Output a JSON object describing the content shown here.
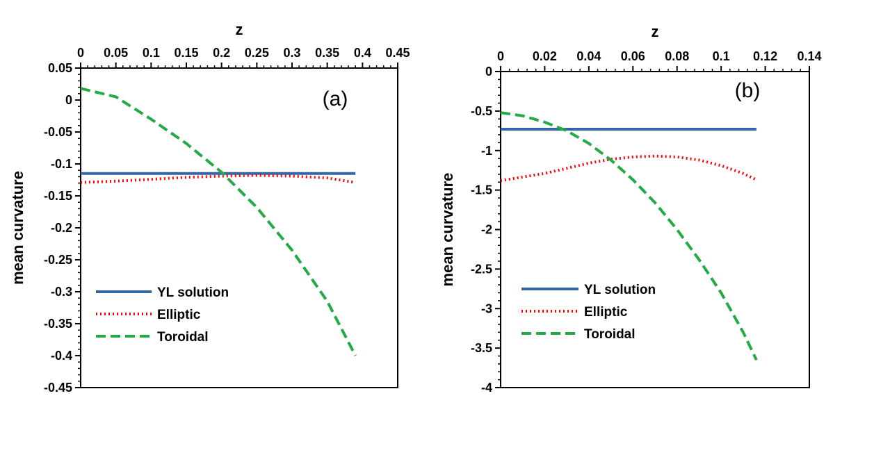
{
  "chart_data": [
    {
      "type": "line",
      "panel_label": "(a)",
      "xlabel": "z",
      "ylabel": "mean curvature",
      "xlim": [
        0,
        0.45
      ],
      "ylim": [
        -0.45,
        0.05
      ],
      "x_ticks": [
        "0",
        "0.05",
        "0.1",
        "0.15",
        "0.2",
        "0.25",
        "0.3",
        "0.35",
        "0.4",
        "0.45"
      ],
      "y_ticks": [
        "0.05",
        "0",
        "-0.05",
        "-0.1",
        "-0.15",
        "-0.2",
        "-0.25",
        "-0.3",
        "-0.35",
        "-0.4",
        "-0.45"
      ],
      "x_axis_position": "top",
      "grid": false,
      "legend_position": "bottom-left",
      "series": [
        {
          "name": "YL solution",
          "color": "#3466a5",
          "dash": "solid",
          "x": [
            0,
            0.1,
            0.2,
            0.3,
            0.39
          ],
          "y": [
            -0.115,
            -0.115,
            -0.115,
            -0.115,
            -0.115
          ]
        },
        {
          "name": "Elliptic",
          "color": "#ff0000",
          "dash": "dotted",
          "x": [
            0,
            0.05,
            0.1,
            0.15,
            0.2,
            0.25,
            0.3,
            0.35,
            0.39
          ],
          "y": [
            -0.129,
            -0.127,
            -0.124,
            -0.121,
            -0.119,
            -0.118,
            -0.119,
            -0.122,
            -0.129
          ]
        },
        {
          "name": "Toroidal",
          "color": "#22aa44",
          "dash": "dashed",
          "x": [
            0,
            0.05,
            0.1,
            0.15,
            0.2,
            0.25,
            0.3,
            0.35,
            0.39
          ],
          "y": [
            0.018,
            0.005,
            -0.03,
            -0.068,
            -0.113,
            -0.168,
            -0.235,
            -0.315,
            -0.4
          ]
        }
      ]
    },
    {
      "type": "line",
      "panel_label": "(b)",
      "xlabel": "z",
      "ylabel": "mean curvature",
      "xlim": [
        0,
        0.14
      ],
      "ylim": [
        -4,
        0
      ],
      "x_ticks": [
        "0",
        "0.02",
        "0.04",
        "0.06",
        "0.08",
        "0.1",
        "0.12",
        "0.14"
      ],
      "y_ticks": [
        "0",
        "-0.5",
        "-1",
        "-1.5",
        "-2",
        "-2.5",
        "-3",
        "-3.5",
        "-4"
      ],
      "x_axis_position": "top",
      "grid": false,
      "legend_position": "bottom-left",
      "series": [
        {
          "name": "YL solution",
          "color": "#3466a5",
          "dash": "solid",
          "x": [
            0,
            0.03,
            0.06,
            0.09,
            0.116
          ],
          "y": [
            -0.73,
            -0.73,
            -0.73,
            -0.73,
            -0.73
          ]
        },
        {
          "name": "Elliptic",
          "color": "#ff0000",
          "dash": "dotted",
          "x": [
            0,
            0.02,
            0.04,
            0.05,
            0.06,
            0.07,
            0.08,
            0.09,
            0.1,
            0.11,
            0.116
          ],
          "y": [
            -1.38,
            -1.29,
            -1.16,
            -1.11,
            -1.08,
            -1.07,
            -1.08,
            -1.12,
            -1.19,
            -1.29,
            -1.37
          ]
        },
        {
          "name": "Toroidal",
          "color": "#22aa44",
          "dash": "dashed",
          "x": [
            0,
            0.01,
            0.02,
            0.03,
            0.04,
            0.05,
            0.06,
            0.07,
            0.08,
            0.09,
            0.1,
            0.11,
            0.116
          ],
          "y": [
            -0.52,
            -0.56,
            -0.64,
            -0.75,
            -0.91,
            -1.12,
            -1.37,
            -1.66,
            -2.0,
            -2.38,
            -2.8,
            -3.3,
            -3.65
          ]
        }
      ]
    }
  ]
}
